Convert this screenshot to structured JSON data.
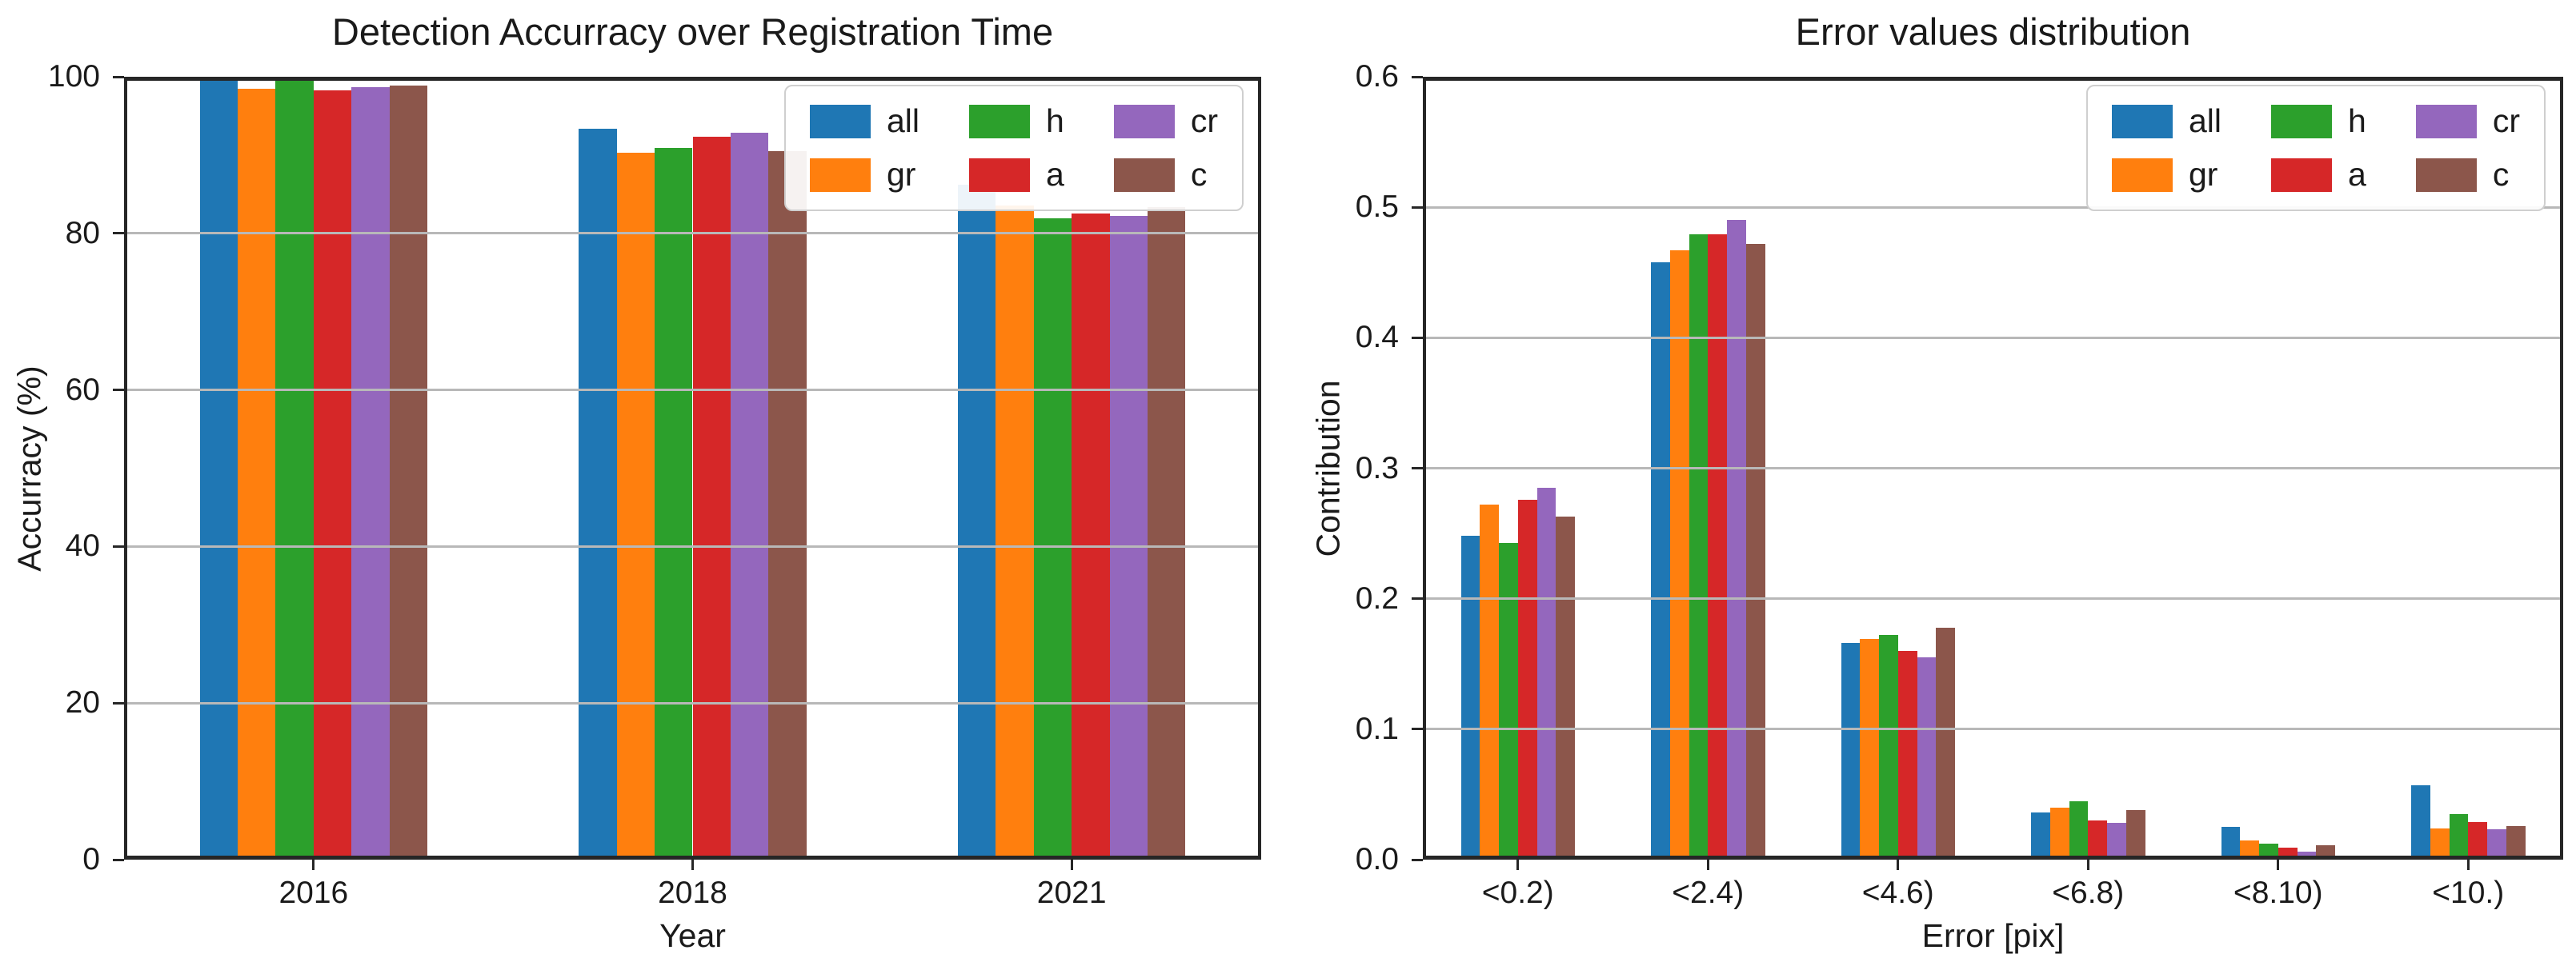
{
  "page": {
    "background": "#ffffff"
  },
  "chart_data": [
    {
      "type": "bar",
      "title": "Detection Accurracy over Registration Time",
      "xlabel": "Year",
      "ylabel": "Accurracy (%)",
      "categories": [
        "2016",
        "2018",
        "2021"
      ],
      "ylim": [
        0,
        100
      ],
      "ytick_labels": [
        "100",
        "80",
        "60",
        "40",
        "20",
        "0"
      ],
      "grid": "horizontal",
      "legend_position": "upper-right",
      "legend_order": [
        [
          "all",
          "gr"
        ],
        [
          "h",
          "a"
        ],
        [
          "cr",
          "c"
        ]
      ],
      "series": [
        {
          "name": "all",
          "color": "#1f77b4",
          "values": [
            100,
            93.4,
            86.2
          ]
        },
        {
          "name": "gr",
          "color": "#ff7f0e",
          "values": [
            98.5,
            90.3,
            83.6
          ]
        },
        {
          "name": "h",
          "color": "#2ca02c",
          "values": [
            99.8,
            90.9,
            81.9
          ]
        },
        {
          "name": "a",
          "color": "#d62728",
          "values": [
            98.3,
            92.3,
            82.5
          ]
        },
        {
          "name": "cr",
          "color": "#9467bd",
          "values": [
            98.7,
            92.9,
            82.2
          ]
        },
        {
          "name": "c",
          "color": "#8c564b",
          "values": [
            98.9,
            90.5,
            83.3
          ]
        }
      ]
    },
    {
      "type": "bar",
      "title": "Error values distribution",
      "xlabel": "Error [pix]",
      "ylabel": "Contribution",
      "categories": [
        "<0.2)",
        "<2.4)",
        "<4.6)",
        "<6.8)",
        "<8.10)",
        "<10.)"
      ],
      "ylim": [
        0,
        0.6
      ],
      "ytick_labels": [
        "0.6",
        "0.5",
        "0.4",
        "0.3",
        "0.2",
        "0.1",
        "0.0"
      ],
      "grid": "horizontal",
      "legend_position": "upper-right",
      "legend_order": [
        [
          "all",
          "gr"
        ],
        [
          "h",
          "a"
        ],
        [
          "cr",
          "c"
        ]
      ],
      "series": [
        {
          "name": "all",
          "color": "#1f77b4",
          "values": [
            0.248,
            0.458,
            0.166,
            0.036,
            0.025,
            0.057
          ]
        },
        {
          "name": "gr",
          "color": "#ff7f0e",
          "values": [
            0.272,
            0.467,
            0.169,
            0.04,
            0.015,
            0.024
          ]
        },
        {
          "name": "h",
          "color": "#2ca02c",
          "values": [
            0.243,
            0.479,
            0.172,
            0.045,
            0.012,
            0.035
          ]
        },
        {
          "name": "a",
          "color": "#d62728",
          "values": [
            0.276,
            0.479,
            0.16,
            0.03,
            0.009,
            0.029
          ]
        },
        {
          "name": "cr",
          "color": "#9467bd",
          "values": [
            0.285,
            0.49,
            0.155,
            0.028,
            0.006,
            0.023
          ]
        },
        {
          "name": "c",
          "color": "#8c564b",
          "values": [
            0.263,
            0.472,
            0.178,
            0.038,
            0.011,
            0.026
          ]
        }
      ]
    }
  ]
}
